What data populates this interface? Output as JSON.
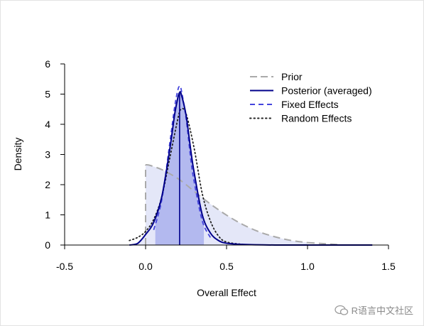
{
  "chart_data": {
    "type": "area",
    "title": "",
    "xlabel": "Overall Effect",
    "ylabel": "Density",
    "xlim": [
      -0.5,
      1.5
    ],
    "ylim": [
      0,
      6
    ],
    "x_ticks": [
      "-0.5",
      "0.0",
      "0.5",
      "1.0",
      "1.5"
    ],
    "y_ticks": [
      "0",
      "1",
      "2",
      "3",
      "4",
      "5",
      "6"
    ],
    "grid": false,
    "legend_position": "top-right",
    "legend": [
      {
        "label": "Prior",
        "style": "dashed",
        "color": "#aaaaaa"
      },
      {
        "label": "Posterior (averaged)",
        "style": "solid",
        "color": "#00008b"
      },
      {
        "label": "Fixed Effects",
        "style": "dashed",
        "color": "#4444dd"
      },
      {
        "label": "Random Effects",
        "style": "dotted",
        "color": "#222222"
      }
    ],
    "prior_fill_color": "#e4e7f8",
    "posterior_fill_color": "#b3b9ef",
    "prior": {
      "x": [
        0.0,
        0.02,
        0.05,
        0.1,
        0.15,
        0.2,
        0.25,
        0.3,
        0.4,
        0.5,
        0.6,
        0.7,
        0.8,
        0.9,
        1.0
      ],
      "y": [
        2.66,
        2.65,
        2.6,
        2.5,
        2.36,
        2.2,
        2.0,
        1.78,
        1.36,
        0.99,
        0.68,
        0.44,
        0.27,
        0.15,
        0.08
      ]
    },
    "posterior_averaged": {
      "x": [
        -0.1,
        -0.05,
        0.0,
        0.05,
        0.1,
        0.15,
        0.18,
        0.2,
        0.21,
        0.22,
        0.25,
        0.28,
        0.3,
        0.35,
        0.4,
        0.45,
        0.5,
        0.6,
        0.8,
        1.0,
        1.4
      ],
      "y": [
        0.0,
        0.05,
        0.35,
        0.75,
        1.6,
        3.2,
        4.35,
        4.9,
        5.05,
        5.0,
        4.3,
        3.1,
        2.4,
        1.0,
        0.4,
        0.15,
        0.06,
        0.02,
        0.0,
        0.0,
        0.0
      ]
    },
    "fixed_effects": {
      "x": [
        0.05,
        0.1,
        0.15,
        0.18,
        0.2,
        0.21,
        0.22,
        0.25,
        0.28,
        0.3,
        0.35,
        0.4
      ],
      "y": [
        0.5,
        1.5,
        3.4,
        4.6,
        5.15,
        5.25,
        5.15,
        4.2,
        2.8,
        2.1,
        0.8,
        0.25
      ]
    },
    "random_effects": {
      "x": [
        -0.1,
        -0.05,
        0.0,
        0.05,
        0.1,
        0.15,
        0.2,
        0.22,
        0.25,
        0.3,
        0.35,
        0.4,
        0.45,
        0.5,
        0.6
      ],
      "y": [
        0.15,
        0.25,
        0.45,
        0.85,
        1.6,
        2.9,
        4.2,
        4.5,
        4.35,
        3.2,
        1.7,
        0.8,
        0.3,
        0.1,
        0.02
      ]
    },
    "posterior_mean": 0.21,
    "shaded_interval": [
      0.06,
      0.36
    ]
  },
  "watermark": {
    "text": "R语言中文社区"
  }
}
